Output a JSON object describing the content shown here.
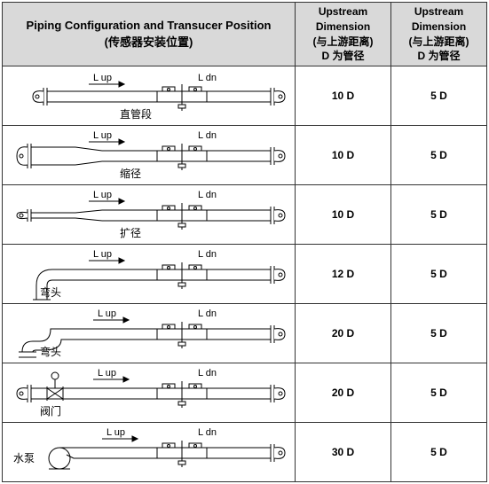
{
  "table": {
    "header": {
      "config_title_en": "Piping Configuration and Transucer Position",
      "config_title_cn": "(传感器安装位置)",
      "col_upstream": {
        "line1": "Upstream",
        "line2": "Dimension",
        "line3": "(与上游距离)",
        "line4": "D 为管径"
      },
      "col_downstream": {
        "line1": "Upstream",
        "line2": "Dimension",
        "line3": "(与上游距离)",
        "line4": "D 为管径"
      }
    },
    "col_widths": {
      "config": 330,
      "up": 108,
      "down": 108
    },
    "diagram_labels": {
      "l_up": "L up",
      "l_dn": "L dn"
    },
    "rows": [
      {
        "name_cn": "直管段",
        "upstream": "10 D",
        "downstream": "5 D",
        "type": "straight",
        "label_pos": "center"
      },
      {
        "name_cn": "缩径",
        "upstream": "10 D",
        "downstream": "5 D",
        "type": "reducer",
        "label_pos": "center"
      },
      {
        "name_cn": "扩径",
        "upstream": "10 D",
        "downstream": "5 D",
        "type": "expander",
        "label_pos": "center"
      },
      {
        "name_cn": "弯头",
        "upstream": "12 D",
        "downstream": "5 D",
        "type": "elbow1",
        "label_pos": "left"
      },
      {
        "name_cn": "弯头",
        "upstream": "20 D",
        "downstream": "5 D",
        "type": "elbow2",
        "label_pos": "left"
      },
      {
        "name_cn": "阀门",
        "upstream": "20 D",
        "downstream": "5 D",
        "type": "valve",
        "label_pos": "left"
      },
      {
        "name_cn": "水泵",
        "upstream": "30 D",
        "downstream": "5 D",
        "type": "pump",
        "label_pos": "far-left"
      }
    ],
    "colors": {
      "header_bg": "#d9d9d9",
      "border": "#333333",
      "text": "#000000"
    }
  }
}
